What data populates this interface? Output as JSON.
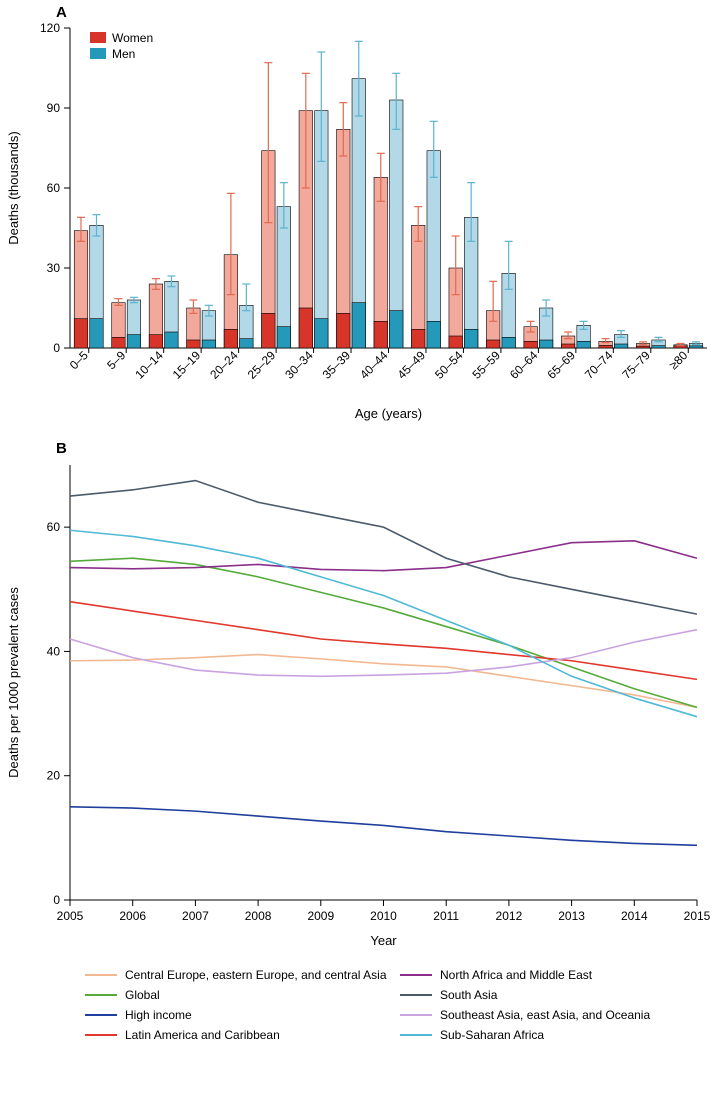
{
  "panelA": {
    "label": "A",
    "type": "grouped-bar-with-error",
    "ylabel": "Deaths (thousands)",
    "xlabel": "Age (years)",
    "ylim": [
      0,
      120
    ],
    "ytick_step": 30,
    "categories": [
      "0–5",
      "5–9",
      "10–14",
      "15–19",
      "20–24",
      "25–29",
      "30–34",
      "35–39",
      "40–44",
      "45–49",
      "50–54",
      "55–59",
      "60–64",
      "65–69",
      "70–74",
      "75–79",
      "≥80"
    ],
    "legend": [
      {
        "label": "Women",
        "color": "#d7352a"
      },
      {
        "label": "Men",
        "color": "#2599ba"
      }
    ],
    "colors": {
      "women_dark": "#d7352a",
      "women_light": "#f2a89a",
      "men_dark": "#2599ba",
      "men_light": "#b3d9e8",
      "error_women": "#e16a51",
      "error_men": "#5ab3cf",
      "axis": "#000000",
      "background": "#ffffff"
    },
    "bar_width_ratio": 0.36,
    "font_sizes": {
      "tick": 12,
      "axis_label": 13,
      "legend": 12,
      "panel_label": 15
    },
    "series": {
      "women_dark": [
        11,
        4,
        5,
        3,
        7,
        13,
        15,
        13,
        10,
        7,
        4.5,
        3,
        2.5,
        1.5,
        1,
        0.7,
        0.8
      ],
      "women_total": [
        44,
        17,
        24,
        15,
        35,
        74,
        89,
        82,
        64,
        46,
        30,
        14,
        8,
        4.5,
        2.5,
        1.7,
        1.2
      ],
      "women_err_low": [
        40,
        16,
        22,
        13,
        20,
        47,
        60,
        72,
        55,
        40,
        20,
        10,
        6,
        3.5,
        2,
        1.2,
        0.9
      ],
      "women_err_high": [
        49,
        18.5,
        26,
        18,
        58,
        107,
        103,
        92,
        73,
        53,
        42,
        25,
        10,
        6,
        3.5,
        2.3,
        1.7
      ],
      "men_dark": [
        11,
        5,
        6,
        3,
        3.5,
        8,
        11,
        17,
        14,
        10,
        7,
        4,
        3,
        2.5,
        1.5,
        0.9,
        0.8
      ],
      "men_total": [
        46,
        18,
        25,
        14,
        16,
        53,
        89,
        101,
        93,
        74,
        49,
        28,
        15,
        8.5,
        5,
        3,
        1.7
      ],
      "men_err_low": [
        42,
        17,
        23,
        12,
        14,
        45,
        70,
        87,
        82,
        64,
        40,
        22,
        12,
        7,
        4,
        2.3,
        1.3
      ],
      "men_err_high": [
        50,
        19,
        27,
        16,
        24,
        62,
        111,
        115,
        103,
        85,
        62,
        40,
        18,
        10,
        6.5,
        4,
        2.3
      ]
    }
  },
  "panelB": {
    "label": "B",
    "type": "line",
    "ylabel": "Deaths per 1000 prevalent cases",
    "xlabel": "Year",
    "ylim": [
      0,
      70
    ],
    "yticks": [
      0,
      20,
      40,
      60
    ],
    "xlim": [
      2005,
      2015
    ],
    "xtick_step": 1,
    "colors": {
      "axis": "#000000",
      "background": "#ffffff"
    },
    "font_sizes": {
      "tick": 12,
      "axis_label": 13,
      "legend": 12,
      "panel_label": 15
    },
    "line_width": 1.6,
    "x": [
      2005,
      2006,
      2007,
      2008,
      2009,
      2010,
      2011,
      2012,
      2013,
      2014,
      2015
    ],
    "series": [
      {
        "label": "Central Europe, eastern Europe, and central Asia",
        "color": "#f2b891",
        "y": [
          38.5,
          38.6,
          39,
          39.5,
          38.8,
          38,
          37.5,
          36,
          34.5,
          33,
          31
        ]
      },
      {
        "label": "Global",
        "color": "#55aa3a",
        "y": [
          54.5,
          55,
          54,
          52,
          49.5,
          47,
          44,
          41,
          37.5,
          34,
          31
        ]
      },
      {
        "label": "High income",
        "color": "#1f3f9e",
        "y": [
          15,
          14.8,
          14.3,
          13.5,
          12.7,
          12,
          11,
          10.3,
          9.6,
          9.1,
          8.8
        ]
      },
      {
        "label": "Latin America and Caribbean",
        "color": "#e1372d",
        "y": [
          48,
          46.5,
          45,
          43.5,
          42,
          41.2,
          40.5,
          39.5,
          38.5,
          37,
          35.5
        ]
      },
      {
        "label": "North Africa and Middle East",
        "color": "#8b2f8a",
        "y": [
          53.5,
          53.3,
          53.5,
          54,
          53.2,
          53,
          53.5,
          55.5,
          57.5,
          57.8,
          55
        ]
      },
      {
        "label": "South Asia",
        "color": "#4a5a6a",
        "y": [
          65,
          66,
          67.5,
          64,
          62,
          60,
          55,
          52,
          50,
          48,
          46
        ]
      },
      {
        "label": "Southeast Asia, east Asia, and Oceania",
        "color": "#c9a3e0",
        "y": [
          42,
          39,
          37,
          36.2,
          36,
          36.2,
          36.5,
          37.5,
          39,
          41.5,
          43.5
        ]
      },
      {
        "label": "Sub-Saharan Africa",
        "color": "#4fb9d6",
        "y": [
          59.5,
          58.5,
          57,
          55,
          52,
          49,
          45,
          41,
          36,
          32.5,
          29.5
        ]
      }
    ],
    "legend_layout": {
      "columns": 2,
      "col1": [
        0,
        1,
        2,
        3
      ],
      "col2": [
        4,
        5,
        6,
        7
      ]
    }
  }
}
